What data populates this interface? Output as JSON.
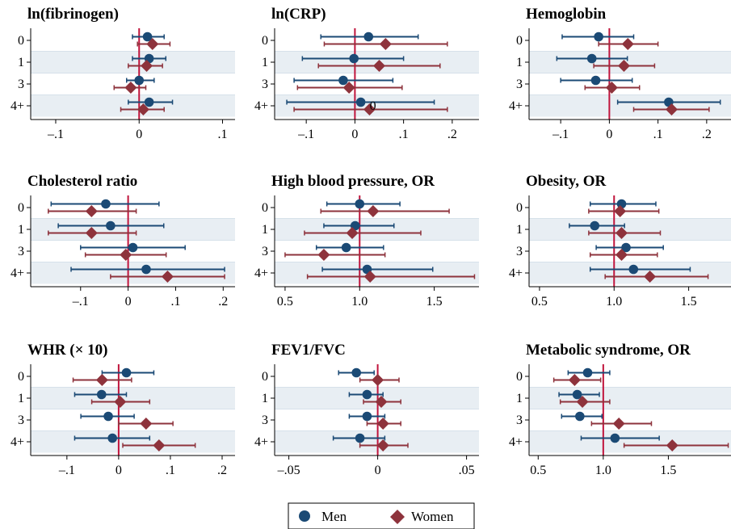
{
  "colors": {
    "men": "#1b4a75",
    "women": "#8e333c",
    "ref_line": "#c0143c",
    "band": "#e8eef3",
    "axis": "#000000"
  },
  "legend": {
    "items": [
      {
        "label": "Men",
        "marker": "circle"
      },
      {
        "label": "Women",
        "marker": "diamond"
      }
    ]
  },
  "chart_data": [
    {
      "type": "forest",
      "title": "ln(fibrinogen)",
      "categories": [
        "0",
        "1",
        "3",
        "4+"
      ],
      "ref": 0,
      "xlim": [
        -0.13,
        0.115
      ],
      "ticks": [
        -0.1,
        0,
        0.1
      ],
      "tick_labels": [
        "–.1",
        "0",
        ".1"
      ],
      "series": [
        {
          "name": "Men",
          "estimate": [
            0.01,
            0.012,
            0.0,
            0.012
          ],
          "lower": [
            -0.008,
            -0.008,
            -0.015,
            -0.013
          ],
          "upper": [
            0.03,
            0.032,
            0.018,
            0.04
          ]
        },
        {
          "name": "Women",
          "estimate": [
            0.016,
            0.009,
            -0.01,
            0.005
          ],
          "lower": [
            -0.002,
            -0.013,
            -0.03,
            -0.022
          ],
          "upper": [
            0.037,
            0.028,
            0.008,
            0.03
          ]
        }
      ]
    },
    {
      "type": "forest",
      "title": "ln(CRP)",
      "categories": [
        "0",
        "1",
        "3",
        "4+"
      ],
      "ref": 0,
      "xlim": [
        -0.165,
        0.255
      ],
      "ticks": [
        -0.1,
        0,
        0.1,
        0.2
      ],
      "tick_labels": [
        "–.1",
        "0",
        ".1",
        ".2"
      ],
      "annotations": [
        {
          "text": "0",
          "x": 0.037,
          "category": "4+"
        }
      ],
      "series": [
        {
          "name": "Men",
          "estimate": [
            0.028,
            -0.002,
            -0.024,
            0.012
          ],
          "lower": [
            -0.07,
            -0.108,
            -0.125,
            -0.14
          ],
          "upper": [
            0.13,
            0.1,
            0.078,
            0.163
          ]
        },
        {
          "name": "Women",
          "estimate": [
            0.063,
            0.05,
            -0.012,
            0.03
          ],
          "lower": [
            -0.063,
            -0.075,
            -0.118,
            -0.125
          ],
          "upper": [
            0.19,
            0.175,
            0.097,
            0.19
          ]
        }
      ]
    },
    {
      "type": "forest",
      "title": "Hemoglobin",
      "categories": [
        "0",
        "1",
        "3",
        "4+"
      ],
      "ref": 0,
      "xlim": [
        -0.165,
        0.255
      ],
      "ticks": [
        -0.1,
        0,
        0.1,
        0.2
      ],
      "tick_labels": [
        "–.1",
        "0",
        ".1",
        ".2"
      ],
      "series": [
        {
          "name": "Men",
          "estimate": [
            -0.022,
            -0.036,
            -0.028,
            0.122
          ],
          "lower": [
            -0.097,
            -0.108,
            -0.1,
            0.017
          ],
          "upper": [
            0.05,
            0.037,
            0.047,
            0.228
          ]
        },
        {
          "name": "Women",
          "estimate": [
            0.038,
            0.03,
            0.005,
            0.128
          ],
          "lower": [
            -0.022,
            -0.032,
            -0.05,
            0.05
          ],
          "upper": [
            0.1,
            0.093,
            0.062,
            0.205
          ]
        }
      ]
    },
    {
      "type": "forest",
      "title": "Cholesterol ratio",
      "categories": [
        "0",
        "1",
        "3",
        "4+"
      ],
      "ref": 0,
      "xlim": [
        -0.205,
        0.225
      ],
      "ticks": [
        -0.1,
        0,
        0.1,
        0.2
      ],
      "tick_labels": [
        "–.1",
        "0",
        ".1",
        ".2"
      ],
      "series": [
        {
          "name": "Men",
          "estimate": [
            -0.047,
            -0.037,
            0.01,
            0.038
          ],
          "lower": [
            -0.162,
            -0.147,
            -0.1,
            -0.12
          ],
          "upper": [
            0.065,
            0.075,
            0.12,
            0.203
          ]
        },
        {
          "name": "Women",
          "estimate": [
            -0.077,
            -0.077,
            -0.005,
            0.083
          ],
          "lower": [
            -0.168,
            -0.168,
            -0.09,
            -0.037
          ],
          "upper": [
            0.017,
            0.017,
            0.08,
            0.203
          ]
        }
      ]
    },
    {
      "type": "forest",
      "title": "High blood pressure, OR",
      "categories": [
        "0",
        "1",
        "3",
        "4+"
      ],
      "ref": 1,
      "xlim": [
        0.43,
        1.8
      ],
      "ticks": [
        0.5,
        1,
        1.5
      ],
      "tick_labels": [
        "0.5",
        "1.0",
        "1.5"
      ],
      "series": [
        {
          "name": "Men",
          "estimate": [
            1.0,
            0.97,
            0.91,
            1.05
          ],
          "lower": [
            0.78,
            0.76,
            0.71,
            0.75
          ],
          "upper": [
            1.27,
            1.23,
            1.16,
            1.49
          ]
        },
        {
          "name": "Women",
          "estimate": [
            1.09,
            0.95,
            0.76,
            1.07
          ],
          "lower": [
            0.74,
            0.63,
            0.5,
            0.65
          ],
          "upper": [
            1.6,
            1.41,
            1.17,
            1.77
          ]
        }
      ]
    },
    {
      "type": "forest",
      "title": "Obesity, OR",
      "categories": [
        "0",
        "1",
        "3",
        "4+"
      ],
      "ref": 1,
      "xlim": [
        0.43,
        1.8
      ],
      "ticks": [
        0.5,
        1,
        1.5
      ],
      "tick_labels": [
        "0.5",
        "1.0",
        "1.5"
      ],
      "series": [
        {
          "name": "Men",
          "estimate": [
            1.05,
            0.87,
            1.08,
            1.13
          ],
          "lower": [
            0.84,
            0.7,
            0.88,
            0.84
          ],
          "upper": [
            1.28,
            1.07,
            1.33,
            1.51
          ]
        },
        {
          "name": "Women",
          "estimate": [
            1.04,
            1.05,
            1.05,
            1.24
          ],
          "lower": [
            0.83,
            0.83,
            0.84,
            0.94
          ],
          "upper": [
            1.3,
            1.31,
            1.29,
            1.63
          ]
        }
      ]
    },
    {
      "type": "forest",
      "title": "WHR (× 10)",
      "categories": [
        "0",
        "1",
        "3",
        "4+"
      ],
      "ref": 0,
      "xlim": [
        -0.17,
        0.225
      ],
      "ticks": [
        -0.1,
        0,
        0.1,
        0.2
      ],
      "tick_labels": [
        "–.1",
        "0",
        ".1",
        ".2"
      ],
      "series": [
        {
          "name": "Men",
          "estimate": [
            0.015,
            -0.033,
            -0.02,
            -0.012
          ],
          "lower": [
            -0.032,
            -0.085,
            -0.073,
            -0.085
          ],
          "upper": [
            0.068,
            0.015,
            0.03,
            0.06
          ]
        },
        {
          "name": "Women",
          "estimate": [
            -0.032,
            0.003,
            0.053,
            0.078
          ],
          "lower": [
            -0.088,
            -0.052,
            0.0,
            0.008
          ],
          "upper": [
            0.025,
            0.06,
            0.105,
            0.148
          ]
        }
      ]
    },
    {
      "type": "forest",
      "title": "FEV1/FVC",
      "categories": [
        "0",
        "1",
        "3",
        "4+"
      ],
      "ref": 0,
      "xlim": [
        -0.058,
        0.057
      ],
      "ticks": [
        -0.05,
        0,
        0.05
      ],
      "tick_labels": [
        "–.05",
        "0",
        ".05"
      ],
      "series": [
        {
          "name": "Men",
          "estimate": [
            -0.012,
            -0.006,
            -0.006,
            -0.01
          ],
          "lower": [
            -0.022,
            -0.016,
            -0.016,
            -0.025
          ],
          "upper": [
            -0.002,
            0.003,
            0.004,
            0.004
          ]
        },
        {
          "name": "Women",
          "estimate": [
            0.0,
            0.002,
            0.003,
            0.003
          ],
          "lower": [
            -0.01,
            -0.008,
            -0.006,
            -0.01
          ],
          "upper": [
            0.012,
            0.013,
            0.013,
            0.017
          ]
        }
      ]
    },
    {
      "type": "forest",
      "title": "Metabolic syndrome, OR",
      "categories": [
        "0",
        "1",
        "3",
        "4+"
      ],
      "ref": 1,
      "xlim": [
        0.43,
        2.0
      ],
      "ticks": [
        0.5,
        1,
        1.5
      ],
      "tick_labels": [
        "0.5",
        "1.0",
        "1.5"
      ],
      "series": [
        {
          "name": "Men",
          "estimate": [
            0.88,
            0.8,
            0.82,
            1.09
          ],
          "lower": [
            0.73,
            0.66,
            0.68,
            0.83
          ],
          "upper": [
            1.05,
            0.97,
            0.99,
            1.43
          ]
        },
        {
          "name": "Women",
          "estimate": [
            0.78,
            0.84,
            1.12,
            1.53
          ],
          "lower": [
            0.62,
            0.67,
            0.91,
            1.16
          ],
          "upper": [
            0.98,
            1.05,
            1.37,
            1.96
          ]
        }
      ]
    }
  ]
}
